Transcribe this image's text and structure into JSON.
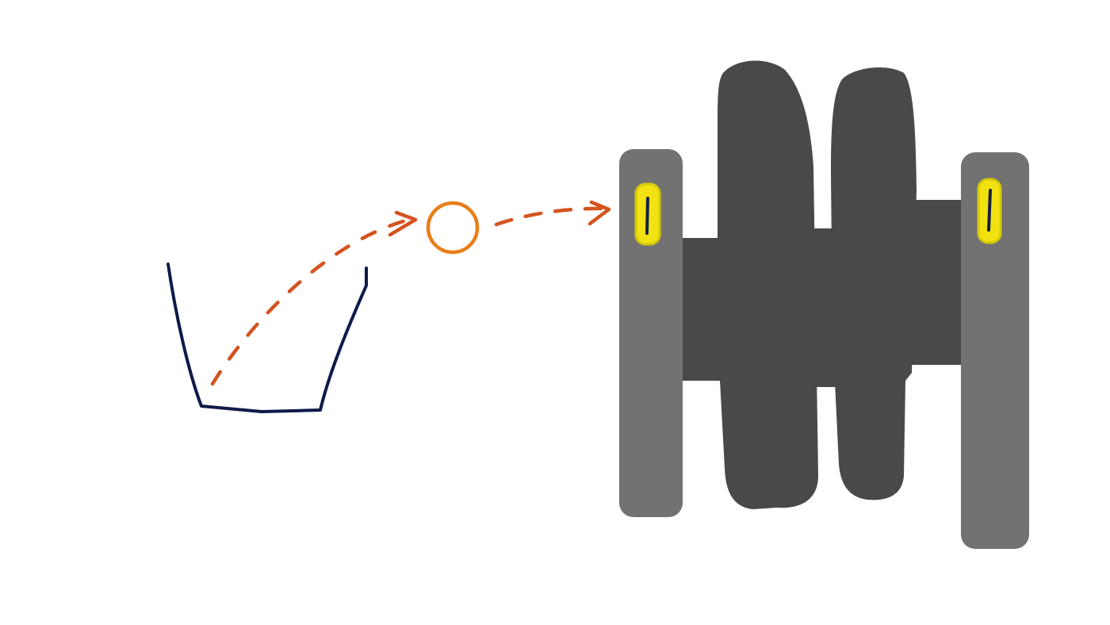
{
  "colors": {
    "background": "#ffffff",
    "cup_stroke": "#0f1a4a",
    "trajectory": "#d4531f",
    "ball": "#e87e1a",
    "outer_plate": "#727272",
    "inner_plate": "#494949",
    "slot_fill": "#f2e212",
    "slot_outline": "#d6c90a",
    "slot_mark": "#152040"
  },
  "elements": {
    "cup": "cup-sketch",
    "ball": "ball-circle",
    "trajectory": "dashed-arrow-path",
    "assembly": "stacked-plates-assembly"
  }
}
